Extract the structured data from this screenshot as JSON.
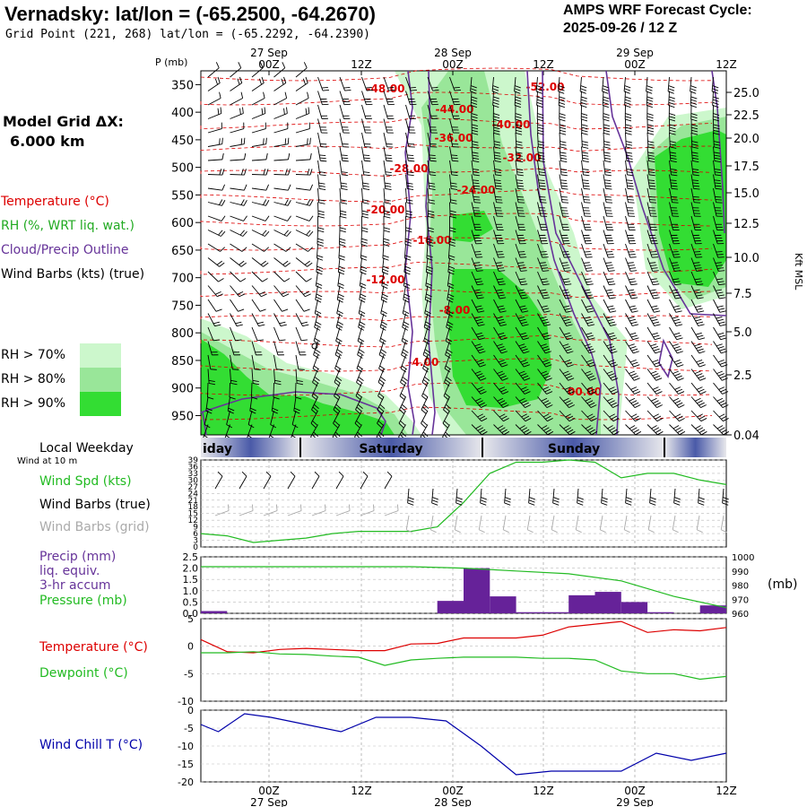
{
  "header": {
    "station_title": "Vernadsky:  lat/lon = (-65.2500, -64.2670)",
    "grid_point": "Grid Point (221, 268) lat/lon = (-65.2292, -64.2390)",
    "cycle_line1": "AMPS WRF Forecast Cycle:",
    "cycle_line2": "2025-09-26 / 12  Z"
  },
  "left_panel": {
    "model_grid_line1": "Model Grid ΔX:",
    "model_grid_line2": "6.000 km",
    "legend_temperature": "Temperature (°C)",
    "legend_rh": "RH (%, WRT liq. wat.)",
    "legend_cloud": "Cloud/Precip Outline",
    "legend_wind": "Wind Barbs (kts) (true)",
    "rh_legend": [
      "RH > 70%",
      "RH > 80%",
      "RH > 90%"
    ],
    "local_weekday": "Local Weekday",
    "wind_at": "Wind at 10 m",
    "wind_spd": "Wind Spd (kts)",
    "wind_barbs_true": "Wind Barbs (true)",
    "wind_barbs_grid": "Wind Barbs (grid)",
    "precip_line1": "Precip (mm)",
    "precip_line2": "liq. equiv.",
    "precip_line3": "3-hr accum",
    "pressure": "Pressure (mb)",
    "temperature": "Temperature (°C)",
    "dewpoint": "Dewpoint (°C)",
    "wind_chill": "Wind Chill T (°C)",
    "mb_unit": "(mb)"
  },
  "colors": {
    "rh70": "#ccf7cc",
    "rh80": "#99e699",
    "rh90": "#33dd33",
    "temperature": "#dd0000",
    "dewpoint": "#22bb22",
    "cloud": "#663399",
    "precip_bar": "#662299",
    "wind_chill": "#0000aa",
    "weekday_band": "#4a5aa8"
  },
  "chart_data": [
    {
      "type": "heatmap",
      "name": "time-height cross section",
      "ylabel": "P (mb)",
      "y2label": "Kft MSL",
      "pressure_ticks": [
        "350",
        "400",
        "450",
        "500",
        "550",
        "600",
        "650",
        "700",
        "750",
        "800",
        "850",
        "900",
        "950"
      ],
      "kft_ticks": [
        "25.0",
        "22.5",
        "20.0",
        "17.5",
        "15.0",
        "12.5",
        "10.0",
        "7.5",
        "5.0",
        "2.5",
        "0.04"
      ],
      "top_date_labels": [
        "27 Sep",
        "28 Sep",
        "29 Sep"
      ],
      "top_time_labels": [
        "00Z",
        "12Z",
        "00Z",
        "12Z",
        "00Z",
        "12Z"
      ],
      "temperature_contour_labels": [
        "-48.00",
        "-52.00",
        "-44.00",
        "-40.00",
        "-36.00",
        "-32.00",
        "-28.00",
        "-24.00",
        "-20.00",
        "-16.00",
        "-12.00",
        "-8.00",
        "-4.00",
        "00.00"
      ],
      "x_range_hours": [
        0,
        60
      ],
      "y_range_mb": [
        325,
        985
      ]
    },
    {
      "type": "line",
      "name": "wind speed at 10 m",
      "ylabel": "Wind Spd (kts)",
      "yticks": [
        "39",
        "36",
        "33",
        "30",
        "27",
        "24",
        "21",
        "18",
        "15",
        "12",
        "9",
        "6",
        "3",
        "0"
      ],
      "ylim": [
        0,
        39
      ],
      "weekday_labels": [
        "iday",
        "Saturday",
        "Sunday"
      ],
      "series": [
        {
          "values_hours": [
            0,
            3,
            6,
            9,
            12,
            15,
            18,
            21,
            24,
            27,
            30,
            33,
            36,
            39,
            42,
            45,
            48,
            51,
            54,
            57,
            60
          ],
          "values": [
            6,
            5,
            2,
            3,
            4,
            6,
            7,
            7,
            7,
            9,
            20,
            33,
            38,
            38,
            39,
            38,
            31,
            33,
            33,
            30,
            28
          ]
        }
      ]
    },
    {
      "type": "bar",
      "name": "precip and pressure",
      "yticks_left": [
        "2.5",
        "2.0",
        "1.5",
        "1.0",
        "0.5",
        "0.0"
      ],
      "yticks_right": [
        "1000",
        "990",
        "980",
        "970",
        "960"
      ],
      "ylim_left": [
        0,
        2.5
      ],
      "ylim_right": [
        960,
        1000
      ],
      "precip_hours": [
        0,
        3,
        6,
        9,
        12,
        15,
        18,
        21,
        24,
        27,
        30,
        33,
        36,
        39,
        42,
        45,
        48,
        51,
        54,
        57
      ],
      "precip_values": [
        0.1,
        0,
        0,
        0,
        0,
        0,
        0,
        0,
        0,
        0.55,
        2.0,
        0.75,
        0.05,
        0.05,
        0.8,
        0.95,
        0.5,
        0.05,
        0,
        0.35
      ],
      "pressure_hours": [
        0,
        6,
        12,
        18,
        24,
        30,
        36,
        42,
        48,
        54,
        60
      ],
      "pressure_values": [
        993,
        993,
        993,
        993,
        993,
        992,
        990,
        988,
        983,
        972,
        964
      ]
    },
    {
      "type": "line",
      "name": "temperature and dewpoint",
      "yticks": [
        "5",
        "0",
        "-5",
        "-10"
      ],
      "ylim": [
        -10,
        5
      ],
      "series": [
        {
          "name": "Temperature",
          "hours": [
            0,
            3,
            6,
            9,
            12,
            15,
            18,
            21,
            24,
            27,
            30,
            33,
            36,
            39,
            42,
            45,
            48,
            51,
            54,
            57,
            60
          ],
          "values": [
            1.2,
            -1.0,
            -1.2,
            -0.6,
            -0.4,
            -0.6,
            -0.8,
            -0.8,
            0.4,
            0.5,
            1.5,
            1.5,
            1.5,
            2.0,
            3.5,
            4.0,
            4.5,
            2.5,
            3.0,
            2.8,
            3.4
          ]
        },
        {
          "name": "Dewpoint",
          "hours": [
            0,
            3,
            6,
            9,
            12,
            15,
            18,
            21,
            24,
            27,
            30,
            33,
            36,
            39,
            42,
            45,
            48,
            51,
            54,
            57,
            60
          ],
          "values": [
            -1.2,
            -1.2,
            -1.0,
            -1.4,
            -1.5,
            -1.8,
            -2.0,
            -3.5,
            -2.5,
            -2.2,
            -2.0,
            -2.0,
            -2.0,
            -2.2,
            -2.2,
            -2.5,
            -4.5,
            -5.0,
            -5.0,
            -6.0,
            -5.5
          ]
        }
      ]
    },
    {
      "type": "line",
      "name": "wind chill",
      "yticks": [
        "0",
        "-5",
        "-10",
        "-15",
        "-20"
      ],
      "ylim": [
        -20,
        0
      ],
      "bottom_time_labels": [
        "00Z",
        "12Z",
        "00Z",
        "12Z",
        "00Z",
        "12Z"
      ],
      "bottom_date_labels": [
        "27 Sep",
        "28 Sep",
        "29 Sep"
      ],
      "series": [
        {
          "hours": [
            0,
            2,
            5,
            8,
            12,
            16,
            20,
            24,
            28,
            32,
            36,
            40,
            44,
            48,
            52,
            56,
            60
          ],
          "values": [
            -4,
            -6,
            -1,
            -2,
            -4,
            -6,
            -2,
            -2,
            -3,
            -10,
            -18,
            -17,
            -17,
            -17,
            -12,
            -14,
            -12
          ]
        }
      ]
    }
  ]
}
